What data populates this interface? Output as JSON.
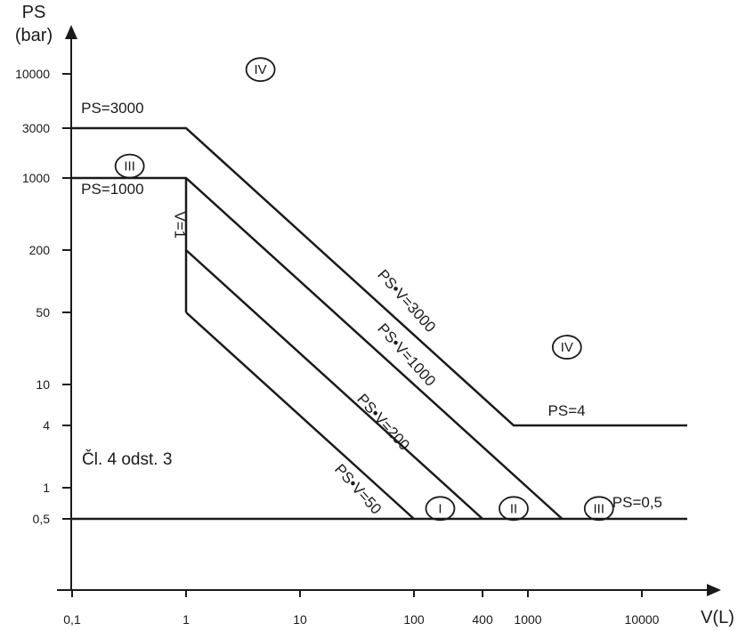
{
  "chart_data": {
    "type": "line",
    "x_scale": "log",
    "y_scale": "log",
    "grid": false,
    "xlabel": "V(L)",
    "ylabel_line1": "PS",
    "ylabel_line2": "(bar)",
    "x_ticks": [
      {
        "value": 0.1,
        "label": "0,1"
      },
      {
        "value": 1,
        "label": "1"
      },
      {
        "value": 10,
        "label": "10"
      },
      {
        "value": 100,
        "label": "100"
      },
      {
        "value": 400,
        "label": "400"
      },
      {
        "value": 1000,
        "label": "1000"
      },
      {
        "value": 10000,
        "label": "10000"
      }
    ],
    "y_ticks": [
      {
        "value": 0.5,
        "label": "0,5"
      },
      {
        "value": 1,
        "label": "1"
      },
      {
        "value": 4,
        "label": "4"
      },
      {
        "value": 10,
        "label": "10"
      },
      {
        "value": 50,
        "label": "50"
      },
      {
        "value": 200,
        "label": "200"
      },
      {
        "value": 1000,
        "label": "1000"
      },
      {
        "value": 3000,
        "label": "3000"
      },
      {
        "value": 10000,
        "label": "10000"
      }
    ],
    "series": [
      {
        "name": "PS=3000",
        "points": [
          [
            0.1,
            3000
          ],
          [
            1,
            3000
          ],
          [
            750,
            4
          ],
          [
            30000,
            4
          ]
        ]
      },
      {
        "name": "PS=1000",
        "points": [
          [
            0.1,
            1000
          ],
          [
            1,
            1000
          ],
          [
            2000,
            0.5
          ]
        ]
      },
      {
        "name": "V=1",
        "points": [
          [
            1,
            1000
          ],
          [
            1,
            50
          ]
        ]
      },
      {
        "name": "PS•V=200",
        "points": [
          [
            1,
            200
          ],
          [
            400,
            0.5
          ]
        ]
      },
      {
        "name": "PS•V=50",
        "points": [
          [
            1,
            50
          ],
          [
            100,
            0.5
          ]
        ]
      },
      {
        "name": "PS=0,5",
        "points": [
          [
            0.1,
            0.5
          ],
          [
            30000,
            0.5
          ]
        ]
      }
    ],
    "line_labels": [
      {
        "text": "PS=3000",
        "x": 0.12,
        "y": 4200
      },
      {
        "text": "PS=1000",
        "x": 0.12,
        "y": 700
      },
      {
        "text": "PS•V=3000",
        "x": 80,
        "y": 60,
        "angle": 48
      },
      {
        "text": "PS•V=1000",
        "x": 80,
        "y": 18,
        "angle": 48
      },
      {
        "text": "PS•V=200",
        "x": 50,
        "y": 4,
        "angle": 48
      },
      {
        "text": "PS•V=50",
        "x": 30,
        "y": 0.9,
        "angle": 48
      },
      {
        "text": "V=1",
        "x": 0.8,
        "y": 350,
        "angle": 90
      },
      {
        "text": "PS=4",
        "x": 1500,
        "y": 5
      },
      {
        "text": "PS=0,5",
        "x": 5500,
        "y": 0.65
      }
    ],
    "regions": [
      {
        "label": "IV",
        "x": 4.5,
        "y": 11000
      },
      {
        "label": "III",
        "x": 0.32,
        "y": 1300
      },
      {
        "label": "IV",
        "x": 2200,
        "y": 23
      },
      {
        "label": "I",
        "x": 170,
        "y": 0.63
      },
      {
        "label": "II",
        "x": 750,
        "y": 0.63
      },
      {
        "label": "III",
        "x": 4200,
        "y": 0.63
      }
    ],
    "annotation": "Čl. 4 odst. 3"
  }
}
